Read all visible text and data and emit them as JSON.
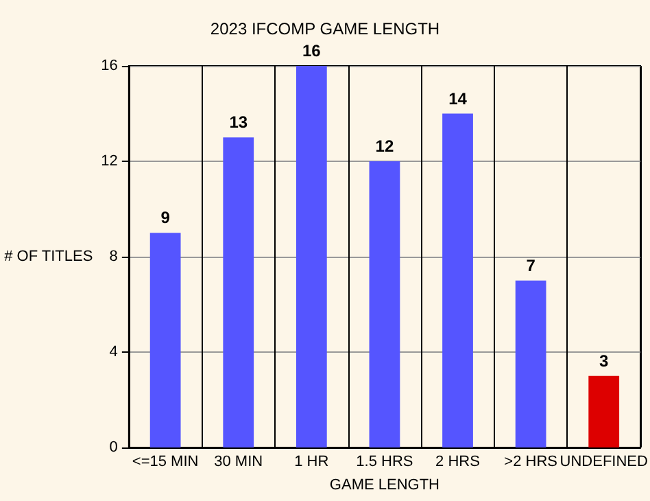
{
  "chart_data": {
    "type": "bar",
    "title": "2023 IFCOMP GAME LENGTH",
    "xlabel": "GAME LENGTH",
    "ylabel": "# OF TITLES",
    "categories": [
      "<=15 MIN",
      "30 MIN",
      "1 HR",
      "1.5 HRS",
      "2 HRS",
      ">2 HRS",
      "UNDEFINED"
    ],
    "values": [
      9,
      13,
      16,
      12,
      14,
      7,
      3
    ],
    "colors": [
      "#5555ff",
      "#5555ff",
      "#5555ff",
      "#5555ff",
      "#5555ff",
      "#5555ff",
      "#dd0000"
    ],
    "ylim": [
      0,
      16
    ],
    "yticks": [
      0,
      4,
      8,
      12,
      16
    ],
    "grid": true,
    "data_labels": true
  }
}
